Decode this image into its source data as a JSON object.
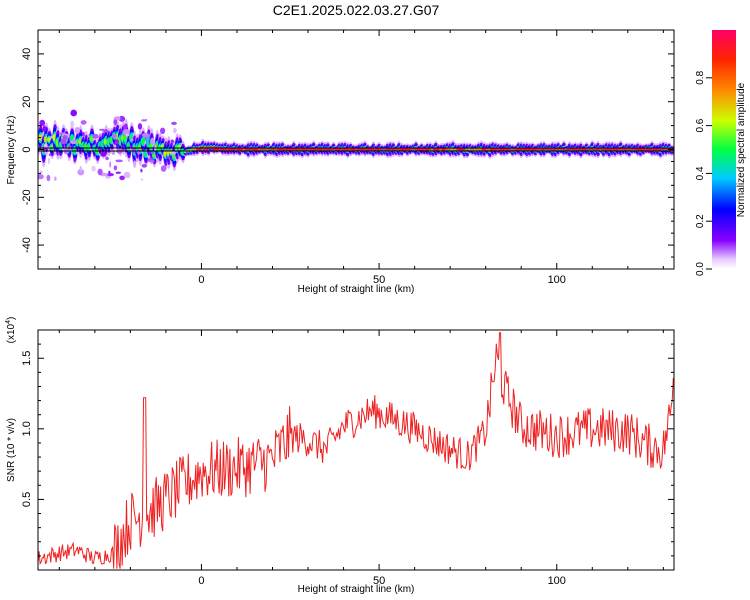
{
  "figure_title": "C2E1.2025.022.03.27.G07",
  "chart_data": [
    {
      "type": "heatmap",
      "xlabel": "Height of straight line (km)",
      "ylabel": "Frequency (Hz)",
      "xlim": [
        -46,
        133
      ],
      "ylim": [
        -50,
        50
      ],
      "x_ticks": [
        0,
        50,
        100
      ],
      "y_ticks": [
        -40,
        -20,
        0,
        20,
        40
      ],
      "tick_labels": {
        "x": [
          "0",
          "50",
          "100"
        ],
        "y": [
          "-40",
          "-20",
          "0",
          "20",
          "40"
        ]
      },
      "colorbar": {
        "label": "Normalized spectral amplitude",
        "range": [
          0,
          1
        ],
        "ticks": [
          0.0,
          0.2,
          0.4,
          0.6,
          0.8
        ],
        "tick_labels": [
          "0.0",
          "0.2",
          "0.4",
          "0.6",
          "0.8"
        ],
        "colormap": [
          "#ffffff",
          "#8800ff",
          "#0000ff",
          "#00ccff",
          "#00ff44",
          "#ccff00",
          "#ff8800",
          "#ff0044"
        ]
      },
      "ridge": {
        "description_points": [
          {
            "x": -45,
            "freq": 2,
            "amp": 0.75
          },
          {
            "x": -40,
            "freq": 3,
            "amp": 0.6
          },
          {
            "x": -35,
            "freq": 1,
            "amp": 0.6
          },
          {
            "x": -30,
            "freq": 2,
            "amp": 0.55
          },
          {
            "x": -25,
            "freq": 3,
            "amp": 0.6
          },
          {
            "x": -20,
            "freq": 3,
            "amp": 0.6
          },
          {
            "x": -15,
            "freq": 1,
            "amp": 0.55
          },
          {
            "x": -10,
            "freq": 0,
            "amp": 0.7
          },
          {
            "x": -5,
            "freq": -1,
            "amp": 0.65
          },
          {
            "x": 0,
            "freq": 1,
            "amp": 0.9
          },
          {
            "x": 10,
            "freq": 0,
            "amp": 0.95
          },
          {
            "x": 30,
            "freq": 0,
            "amp": 0.95
          },
          {
            "x": 50,
            "freq": 0,
            "amp": 1.0
          },
          {
            "x": 75,
            "freq": 0,
            "amp": 0.85
          },
          {
            "x": 100,
            "freq": 0,
            "amp": 1.0
          },
          {
            "x": 133,
            "freq": 0,
            "amp": 1.0
          }
        ],
        "line_freq": 0
      }
    },
    {
      "type": "line",
      "xlabel": "Height of straight line (km)",
      "ylabel": "SNR (10 * v/v)",
      "y_scale_label": "(x10",
      "y_scale_exponent": "4",
      "xlim": [
        -46,
        133
      ],
      "ylim": [
        0,
        1.7
      ],
      "x_ticks": [
        0,
        50,
        100
      ],
      "y_ticks": [
        0.5,
        1.0,
        1.5
      ],
      "tick_labels": {
        "x": [
          "0",
          "50",
          "100"
        ],
        "y": [
          "0.5",
          "1.0",
          "1.5"
        ]
      },
      "color": "#ee2222",
      "trend": [
        {
          "x": -46,
          "y": 0.08
        },
        {
          "x": -40,
          "y": 0.12
        },
        {
          "x": -35,
          "y": 0.14
        },
        {
          "x": -30,
          "y": 0.08
        },
        {
          "x": -25,
          "y": 0.12
        },
        {
          "x": -20,
          "y": 0.35
        },
        {
          "x": -15,
          "y": 0.4
        },
        {
          "x": -10,
          "y": 0.5
        },
        {
          "x": -5,
          "y": 0.6
        },
        {
          "x": 0,
          "y": 0.7
        },
        {
          "x": 10,
          "y": 0.72
        },
        {
          "x": 20,
          "y": 0.78
        },
        {
          "x": 25,
          "y": 0.95
        },
        {
          "x": 30,
          "y": 0.92
        },
        {
          "x": 35,
          "y": 0.85
        },
        {
          "x": 40,
          "y": 1.02
        },
        {
          "x": 48,
          "y": 1.13
        },
        {
          "x": 55,
          "y": 1.06
        },
        {
          "x": 60,
          "y": 1.0
        },
        {
          "x": 68,
          "y": 0.88
        },
        {
          "x": 75,
          "y": 0.8
        },
        {
          "x": 80,
          "y": 0.98
        },
        {
          "x": 83,
          "y": 1.5
        },
        {
          "x": 85,
          "y": 1.3
        },
        {
          "x": 90,
          "y": 1.02
        },
        {
          "x": 100,
          "y": 0.95
        },
        {
          "x": 110,
          "y": 1.0
        },
        {
          "x": 120,
          "y": 0.98
        },
        {
          "x": 126,
          "y": 0.88
        },
        {
          "x": 130,
          "y": 0.85
        },
        {
          "x": 133,
          "y": 1.25
        }
      ],
      "peaks": [
        {
          "x": -16,
          "y": 1.22
        },
        {
          "x": 84,
          "y": 1.68
        },
        {
          "x": 133,
          "y": 1.36
        }
      ]
    }
  ]
}
